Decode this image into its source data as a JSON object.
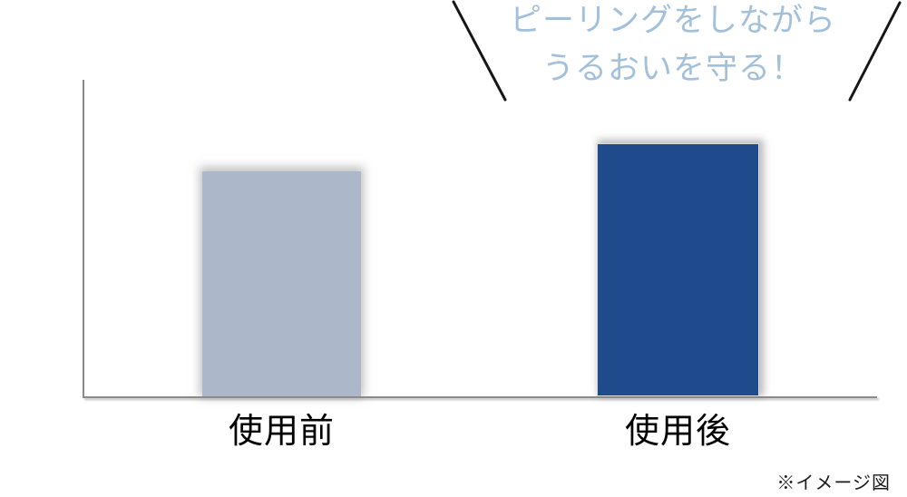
{
  "chart_data": {
    "type": "bar",
    "categories": [
      "使用前",
      "使用後"
    ],
    "values": [
      71,
      80
    ],
    "ylim": [
      0,
      100
    ],
    "values_note": "no numeric axis shown; values are estimated relative bar heights (% of plot height)",
    "bar_colors": [
      "#acb8ca",
      "#1f4a8c"
    ],
    "title": "",
    "xlabel": "",
    "ylabel": "",
    "grid": false,
    "legend": false
  },
  "headline": {
    "line1": "ピーリングをしながら",
    "line2": "うるおいを守る！",
    "color": "#a3c0db"
  },
  "note": "※イメージ図",
  "decor": {
    "slash_color": "#161616",
    "axis_color": "#8a8a8a"
  }
}
